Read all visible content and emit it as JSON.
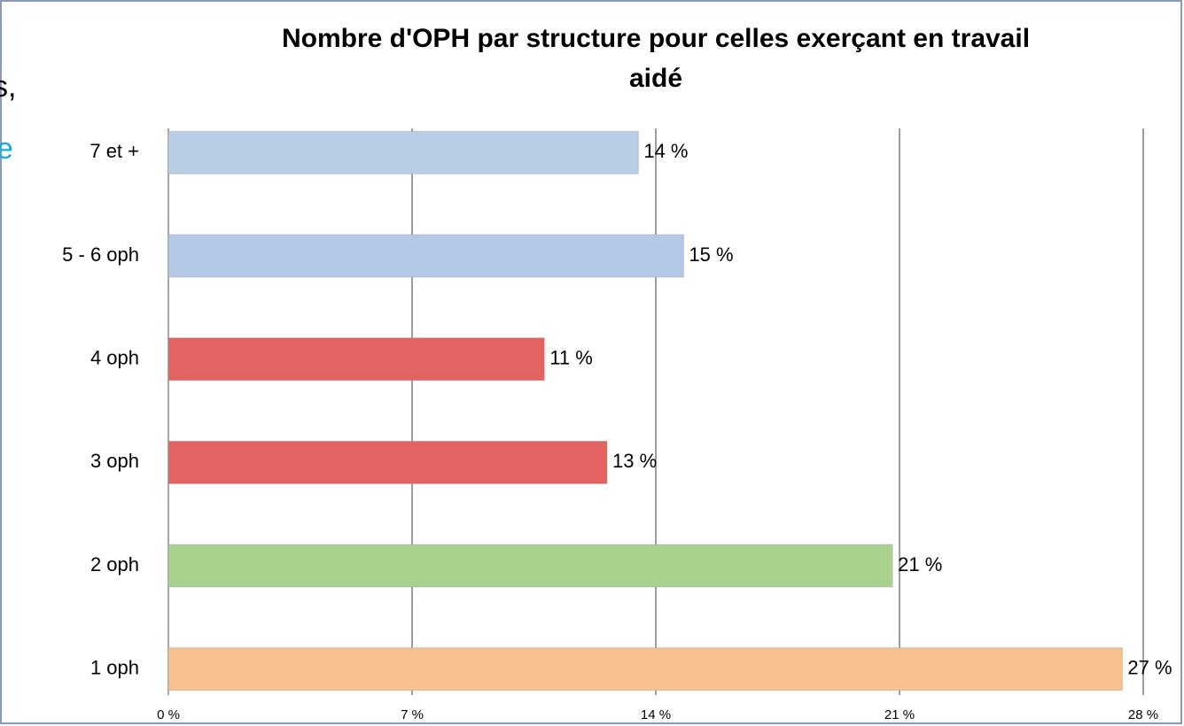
{
  "chart_data": {
    "type": "bar",
    "orientation": "horizontal",
    "title": "Nombre d'OPH par structure pour celles exerçant en travail aidé",
    "categories": [
      "7 et +",
      "5 - 6 oph",
      "4 oph",
      "3 oph",
      "2 oph",
      "1 oph"
    ],
    "values": [
      13.5,
      14.8,
      10.8,
      12.6,
      20.8,
      27.4
    ],
    "value_labels": [
      "14 %",
      "15 %",
      "11 %",
      "13 %",
      "21 %",
      "27 %"
    ],
    "colors": [
      "#b9cde5",
      "#b4c7e7",
      "#e2635f",
      "#e2635f",
      "#a9d18e",
      "#f9c08f"
    ],
    "xlim": [
      0,
      28
    ],
    "xticks": [
      {
        "value": 0,
        "label": "0 %"
      },
      {
        "value": 7,
        "label": "7 %"
      },
      {
        "value": 14,
        "label": "14 %"
      },
      {
        "value": 21,
        "label": "21 %"
      },
      {
        "value": 28,
        "label": "28 %"
      }
    ],
    "grid": true
  },
  "slide_fragments": [
    "s,",
    "e"
  ]
}
